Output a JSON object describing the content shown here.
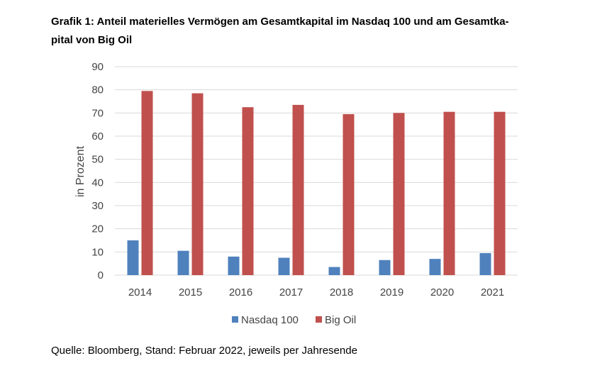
{
  "title_line1": "Grafik 1: Anteil materielles Vermögen am Gesamtkapital im Nasdaq 100 und am Gesamtka-",
  "title_line2": "pital von Big Oil",
  "source": "Quelle: Bloomberg, Stand: Februar 2022, jeweils per Jahresende",
  "chart_data": {
    "type": "bar",
    "title": "Grafik 1: Anteil materielles Vermögen am Gesamtkapital im Nasdaq 100 und am Gesamtkapital von Big Oil",
    "xlabel": "",
    "ylabel": "in Prozent",
    "ylim": [
      0,
      90
    ],
    "yticks": [
      0,
      10,
      20,
      30,
      40,
      50,
      60,
      70,
      80,
      90
    ],
    "grid": true,
    "legend_position": "bottom",
    "categories": [
      "2014",
      "2015",
      "2016",
      "2017",
      "2018",
      "2019",
      "2020",
      "2021"
    ],
    "series": [
      {
        "name": "Nasdaq 100",
        "color": "#4f81bd",
        "values": [
          15,
          10.5,
          8,
          7.5,
          3.5,
          6.5,
          7,
          9.5
        ]
      },
      {
        "name": "Big Oil",
        "color": "#c0504d",
        "values": [
          79.5,
          78.5,
          72.5,
          73.5,
          69.5,
          70,
          70.5,
          70.5
        ]
      }
    ]
  }
}
